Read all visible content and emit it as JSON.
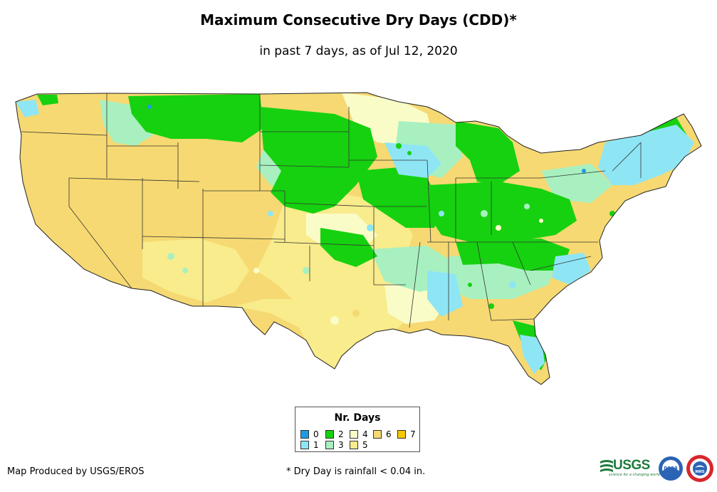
{
  "header": {
    "title": "Maximum Consecutive Dry Days (CDD)*",
    "subtitle": "in past 7 days, as of Jul 12, 2020"
  },
  "legend": {
    "title": "Nr. Days",
    "items": [
      {
        "label": "0",
        "color": "#1f9ae6"
      },
      {
        "label": "1",
        "color": "#8ee6f5"
      },
      {
        "label": "2",
        "color": "#16d10f"
      },
      {
        "label": "3",
        "color": "#a9f0c0"
      },
      {
        "label": "4",
        "color": "#fafcc8"
      },
      {
        "label": "5",
        "color": "#f8ec8c"
      },
      {
        "label": "6",
        "color": "#f6d972"
      },
      {
        "label": "7",
        "color": "#f6c800"
      }
    ]
  },
  "footer": {
    "credit": "Map Produced by USGS/EROS",
    "note": "* Dry Day is rainfall < 0.04 in."
  },
  "logos": {
    "usgs_text": "USGS",
    "usgs_tagline": "science for a changing world",
    "noaa_text": "noaa",
    "nws_text": "NWS"
  }
}
